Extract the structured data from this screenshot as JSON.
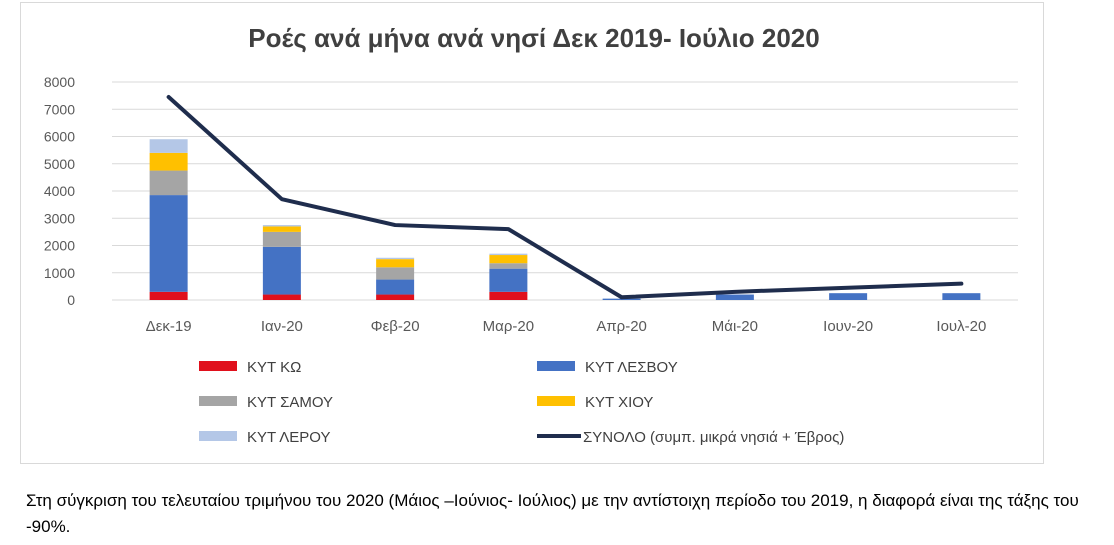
{
  "chart_data": {
    "type": "bar",
    "title": "Ροές ανά μήνα ανά νησί Δεκ 2019- Ιούλιο 2020",
    "categories": [
      "Δεκ-19",
      "Ιαν-20",
      "Φεβ-20",
      "Μαρ-20",
      "Απρ-20",
      "Μάι-20",
      "Ιουν-20",
      "Ιουλ-20"
    ],
    "ylim": [
      0,
      8000
    ],
    "yticks": [
      "0",
      "1000",
      "2000",
      "3000",
      "4000",
      "5000",
      "6000",
      "7000",
      "8000"
    ],
    "grid": true,
    "legend_position": "bottom",
    "series": [
      {
        "name": "ΚΥΤ ΚΩ",
        "kind": "bar",
        "color": "#e0101c",
        "values": [
          300,
          200,
          200,
          300,
          0,
          0,
          0,
          0
        ]
      },
      {
        "name": "ΚΥΤ ΛΕΣΒΟΥ",
        "kind": "bar",
        "color": "#4472c4",
        "values": [
          3550,
          1750,
          550,
          850,
          50,
          200,
          250,
          250
        ]
      },
      {
        "name": "ΚΥΤ ΣΑΜΟΥ",
        "kind": "bar",
        "color": "#a5a5a5",
        "values": [
          900,
          550,
          450,
          200,
          0,
          0,
          0,
          0
        ]
      },
      {
        "name": "ΚΥΤ ΧΙΟΥ",
        "kind": "bar",
        "color": "#ffc000",
        "values": [
          650,
          200,
          300,
          300,
          0,
          0,
          0,
          0
        ]
      },
      {
        "name": "ΚΥΤ ΛΕΡΟΥ",
        "kind": "bar",
        "color": "#b4c7e7",
        "values": [
          500,
          50,
          50,
          50,
          0,
          0,
          0,
          0
        ]
      },
      {
        "name": "ΣΥΝΟΛΟ (συμπ. μικρά νησιά + Έβρος)",
        "kind": "line",
        "color": "#1f2d4d",
        "values": [
          7450,
          3700,
          2750,
          2600,
          100,
          300,
          450,
          600
        ]
      }
    ]
  },
  "caption": "Στη σύγκριση του τελευταίου τριμήνου του 2020 (Μάιος –Ιούνιος- Ιούλιος) με την αντίστοιχη περίοδο του 2019, η διαφορά είναι της τάξης του -90%."
}
